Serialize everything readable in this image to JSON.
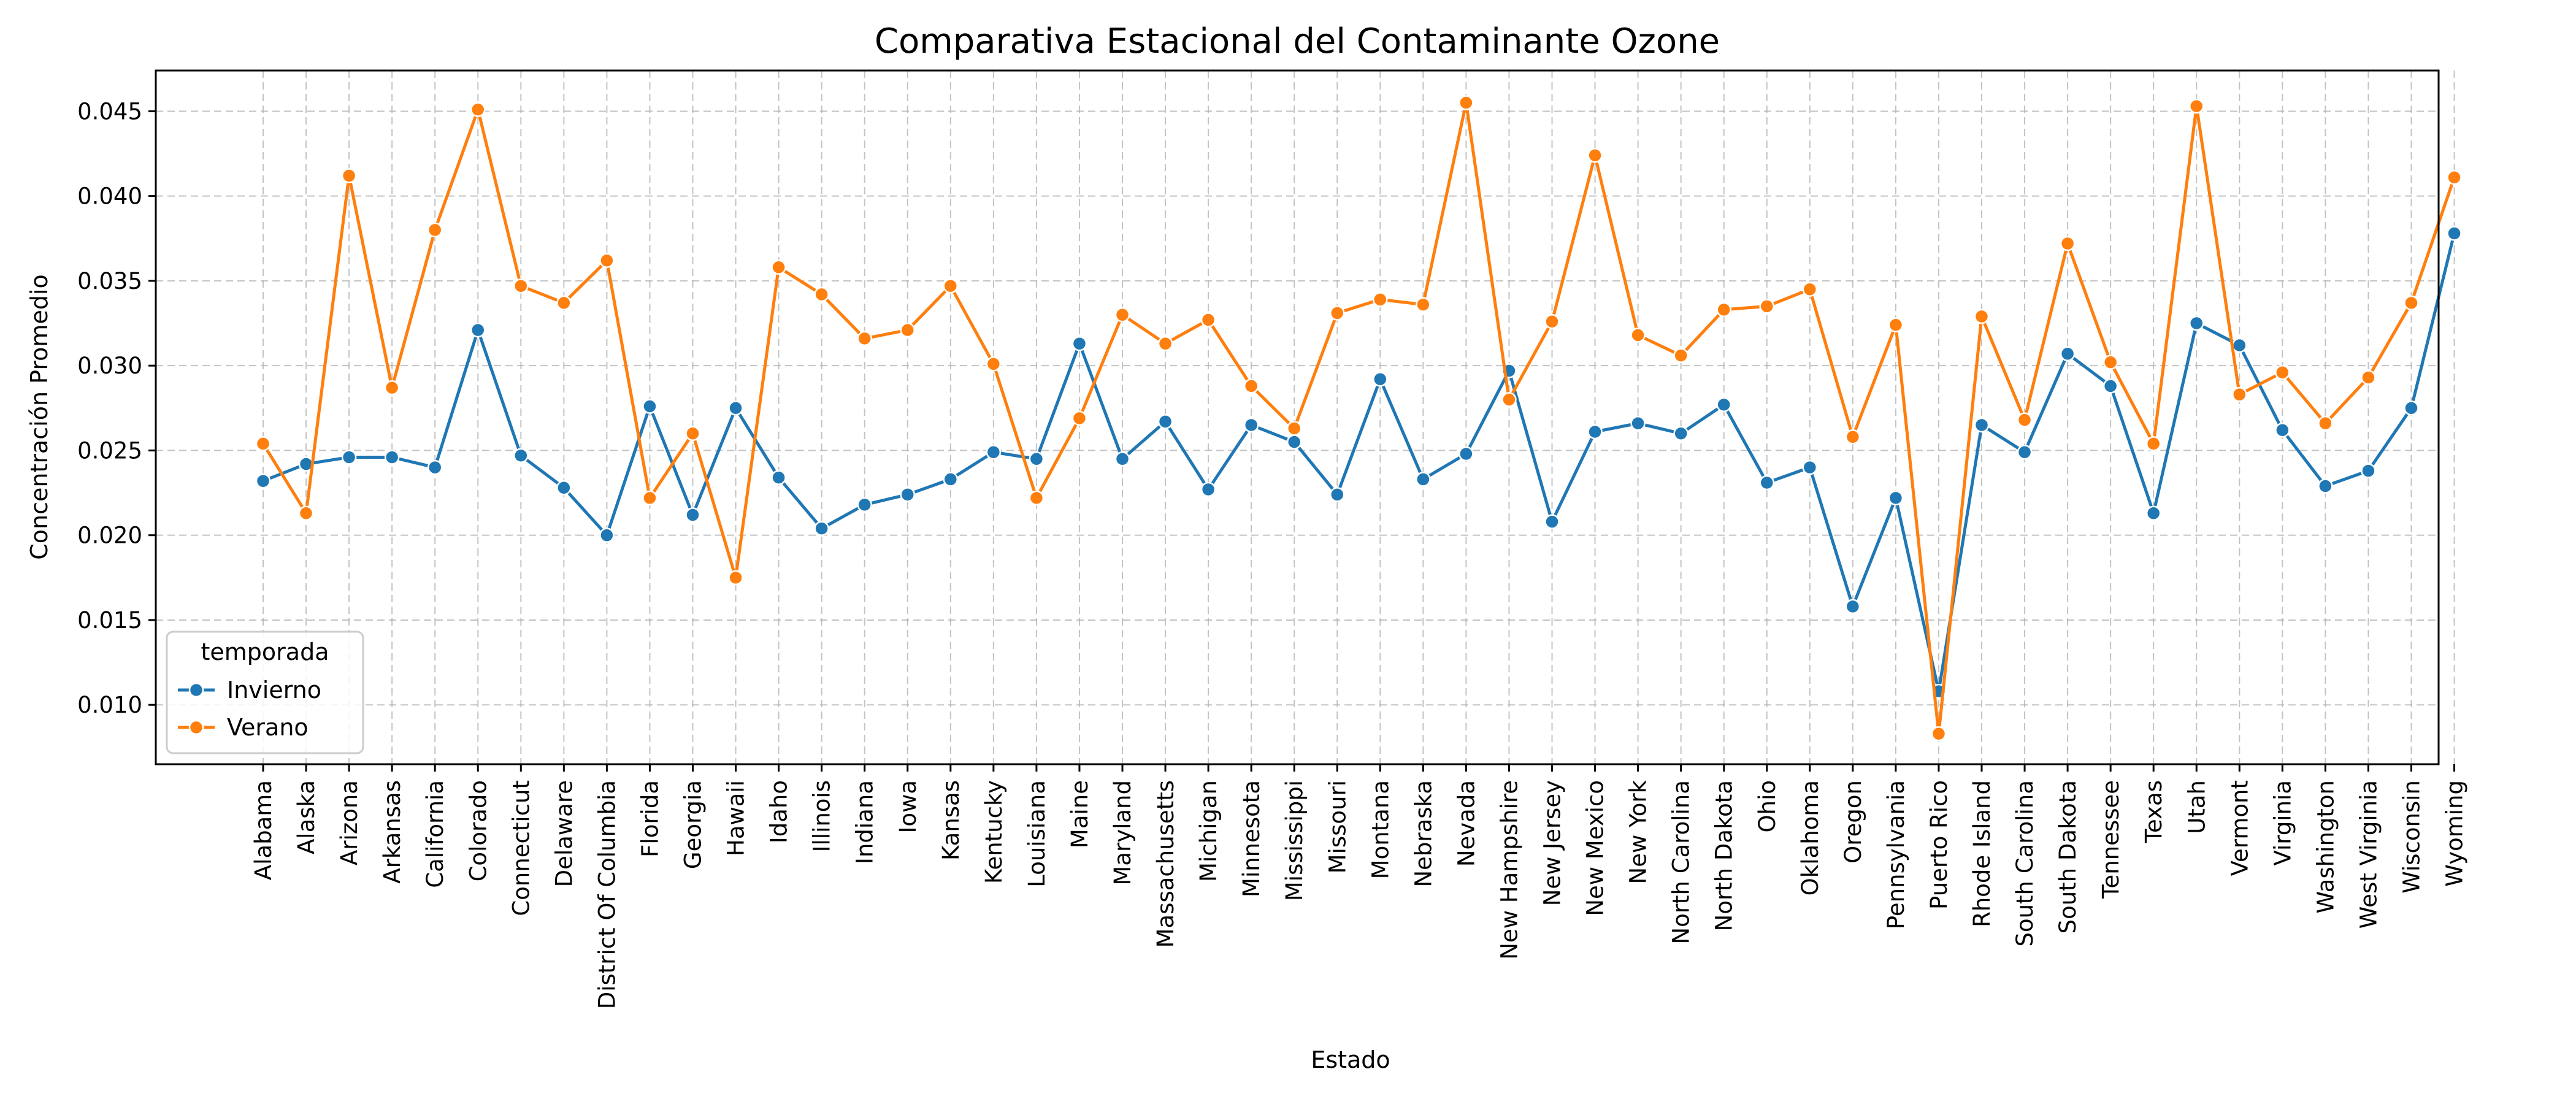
{
  "chart_data": {
    "type": "line",
    "title": "Comparativa Estacional del Contaminante Ozone",
    "xlabel": "Estado",
    "ylabel": "Concentración Promedio",
    "ylim": [
      0.0065,
      0.0474
    ],
    "yticks": [
      "0.010",
      "0.015",
      "0.020",
      "0.025",
      "0.030",
      "0.035",
      "0.040",
      "0.045"
    ],
    "ytick_values": [
      0.01,
      0.015,
      0.02,
      0.025,
      0.03,
      0.035,
      0.04,
      0.045
    ],
    "grid": true,
    "legend": {
      "title": "temporada",
      "placement": "lower-left"
    },
    "categories": [
      "Alabama",
      "Alaska",
      "Arizona",
      "Arkansas",
      "California",
      "Colorado",
      "Connecticut",
      "Delaware",
      "District Of Columbia",
      "Florida",
      "Georgia",
      "Hawaii",
      "Idaho",
      "Illinois",
      "Indiana",
      "Iowa",
      "Kansas",
      "Kentucky",
      "Louisiana",
      "Maine",
      "Maryland",
      "Massachusetts",
      "Michigan",
      "Minnesota",
      "Mississippi",
      "Missouri",
      "Montana",
      "Nebraska",
      "Nevada",
      "New Hampshire",
      "New Jersey",
      "New Mexico",
      "New York",
      "North Carolina",
      "North Dakota",
      "Ohio",
      "Oklahoma",
      "Oregon",
      "Pennsylvania",
      "Puerto Rico",
      "Rhode Island",
      "South Carolina",
      "South Dakota",
      "Tennessee",
      "Texas",
      "Utah",
      "Vermont",
      "Virginia",
      "Washington",
      "West Virginia",
      "Wisconsin",
      "Wyoming"
    ],
    "series": [
      {
        "name": "Invierno",
        "color": "#1f77b4",
        "values": [
          0.0232,
          0.0242,
          0.0246,
          0.0246,
          0.024,
          0.0321,
          0.0247,
          0.0228,
          0.02,
          0.0276,
          0.0212,
          0.0275,
          0.0234,
          0.0204,
          0.0218,
          0.0224,
          0.0233,
          0.0249,
          0.0245,
          0.0313,
          0.0245,
          0.0267,
          0.0227,
          0.0265,
          0.0255,
          0.0224,
          0.0292,
          0.0233,
          0.0248,
          0.0297,
          0.0208,
          0.0261,
          0.0266,
          0.026,
          0.0277,
          0.0231,
          0.024,
          0.0158,
          0.0222,
          0.0108,
          0.0265,
          0.0249,
          0.0307,
          0.0288,
          0.0213,
          0.0325,
          0.0312,
          0.0262,
          0.0229,
          0.0238,
          0.0275,
          0.0378
        ]
      },
      {
        "name": "Verano",
        "color": "#ff7f0e",
        "values": [
          0.0254,
          0.0213,
          0.0412,
          0.0287,
          0.038,
          0.0451,
          0.0347,
          0.0337,
          0.0362,
          0.0222,
          0.026,
          0.0175,
          0.0358,
          0.0342,
          0.0316,
          0.0321,
          0.0347,
          0.0301,
          0.0222,
          0.0269,
          0.033,
          0.0313,
          0.0327,
          0.0288,
          0.0263,
          0.0331,
          0.0339,
          0.0336,
          0.0455,
          0.028,
          0.0326,
          0.0424,
          0.0318,
          0.0306,
          0.0333,
          0.0335,
          0.0345,
          0.0258,
          0.0324,
          0.0083,
          0.0329,
          0.0268,
          0.0372,
          0.0302,
          0.0254,
          0.0453,
          0.0283,
          0.0296,
          0.0266,
          0.0293,
          0.0337,
          0.0411
        ]
      }
    ]
  }
}
